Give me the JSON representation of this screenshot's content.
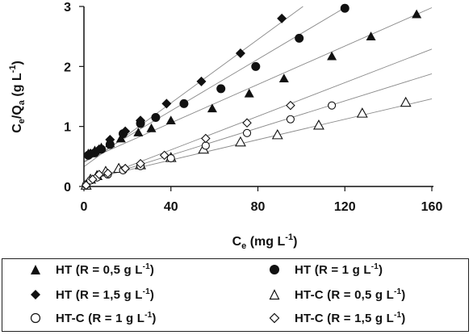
{
  "chart_data": {
    "type": "scatter",
    "title": "",
    "xlabel": "Ce (mg L-1)",
    "ylabel": "Ce/Qa (g L-1)",
    "xlim": [
      0,
      160
    ],
    "ylim": [
      0,
      3
    ],
    "xticks": [
      0,
      40,
      80,
      120,
      160
    ],
    "yticks": [
      0,
      1,
      2,
      3
    ],
    "grid": false,
    "legend_position": "bottom",
    "series": [
      {
        "name": "HT (R = 0,5 g L-1)",
        "marker": "triangle-filled",
        "color": "#111111",
        "fit": {
          "intercept": 0.42,
          "slope": 0.016
        },
        "points": [
          [
            2,
            0.55
          ],
          [
            5,
            0.6
          ],
          [
            8,
            0.65
          ],
          [
            12,
            0.72
          ],
          [
            17,
            0.8
          ],
          [
            25,
            0.9
          ],
          [
            31,
            0.97
          ],
          [
            40,
            1.1
          ],
          [
            59,
            1.3
          ],
          [
            76,
            1.55
          ],
          [
            92,
            1.8
          ],
          [
            114,
            2.17
          ],
          [
            132,
            2.5
          ],
          [
            153,
            2.87
          ]
        ]
      },
      {
        "name": "HT (R = 1 g L-1)",
        "marker": "circle-filled",
        "color": "#111111",
        "fit": {
          "intercept": 0.4,
          "slope": 0.0215
        },
        "points": [
          [
            2,
            0.52
          ],
          [
            5,
            0.56
          ],
          [
            8,
            0.62
          ],
          [
            12,
            0.7
          ],
          [
            18,
            0.88
          ],
          [
            26,
            1.05
          ],
          [
            33,
            1.15
          ],
          [
            46,
            1.38
          ],
          [
            63,
            1.63
          ],
          [
            79,
            2.0
          ],
          [
            99,
            2.47
          ],
          [
            120,
            2.97
          ]
        ]
      },
      {
        "name": "HT (R = 1,5 g L-1)",
        "marker": "diamond-filled",
        "color": "#111111",
        "fit": {
          "intercept": 0.33,
          "slope": 0.0265
        },
        "points": [
          [
            3,
            0.55
          ],
          [
            7,
            0.62
          ],
          [
            12,
            0.78
          ],
          [
            19,
            0.92
          ],
          [
            26,
            1.1
          ],
          [
            38,
            1.38
          ],
          [
            54,
            1.75
          ],
          [
            72,
            2.22
          ],
          [
            91,
            2.8
          ]
        ]
      },
      {
        "name": "HT-C (R = 0,5 g L-1)",
        "marker": "triangle-open",
        "color": "#111111",
        "fit": {
          "intercept": 0.1,
          "slope": 0.0085
        },
        "points": [
          [
            1,
            0.02
          ],
          [
            3,
            0.12
          ],
          [
            6,
            0.18
          ],
          [
            10,
            0.25
          ],
          [
            16,
            0.3
          ],
          [
            26,
            0.36
          ],
          [
            40,
            0.48
          ],
          [
            55,
            0.62
          ],
          [
            72,
            0.74
          ],
          [
            89,
            0.86
          ],
          [
            108,
            1.02
          ],
          [
            128,
            1.22
          ],
          [
            148,
            1.4
          ]
        ]
      },
      {
        "name": "HT-C (R = 1 g L-1)",
        "marker": "circle-open",
        "color": "#111111",
        "fit": {
          "intercept": 0.07,
          "slope": 0.0113
        },
        "points": [
          [
            1,
            0.03
          ],
          [
            3,
            0.1
          ],
          [
            6,
            0.15
          ],
          [
            11,
            0.2
          ],
          [
            18,
            0.27
          ],
          [
            26,
            0.34
          ],
          [
            40,
            0.47
          ],
          [
            56,
            0.68
          ],
          [
            75,
            0.89
          ],
          [
            95,
            1.12
          ],
          [
            114,
            1.35
          ]
        ]
      },
      {
        "name": "HT-C (R = 1,5 g L-1)",
        "marker": "diamond-open",
        "color": "#111111",
        "fit": {
          "intercept": 0.05,
          "slope": 0.014
        },
        "points": [
          [
            1,
            0.02
          ],
          [
            4,
            0.12
          ],
          [
            7,
            0.2
          ],
          [
            11,
            0.22
          ],
          [
            19,
            0.3
          ],
          [
            26,
            0.38
          ],
          [
            37,
            0.52
          ],
          [
            56,
            0.8
          ],
          [
            75,
            1.06
          ],
          [
            95,
            1.35
          ]
        ]
      }
    ]
  },
  "legend": {
    "items": [
      {
        "name": "HT (R = 0,5 g L",
        "sup": "-1",
        "close": ")"
      },
      {
        "name": "HT (R = 1 g L",
        "sup": "-1",
        "close": ")"
      },
      {
        "name": "HT (R = 1,5 g L",
        "sup": "-1",
        "close": ")"
      },
      {
        "name": "HT-C (R = 0,5 g L",
        "sup": "-1",
        "close": ")"
      },
      {
        "name": "HT-C (R = 1 g L",
        "sup": "-1",
        "close": ")"
      },
      {
        "name": "HT-C (R = 1,5 g L",
        "sup": "-1",
        "close": ")"
      }
    ]
  },
  "axis_text": {
    "xlabel_main": "C",
    "xlabel_sub": "e",
    "xlabel_rest": " (mg L",
    "xlabel_sup": "-1",
    "xlabel_close": ")",
    "ylabel_main": "C",
    "ylabel_sub1": "e",
    "ylabel_mid": "/Q",
    "ylabel_sub2": "a",
    "ylabel_rest": " (g L",
    "ylabel_sup": "-1",
    "ylabel_close": ")"
  }
}
